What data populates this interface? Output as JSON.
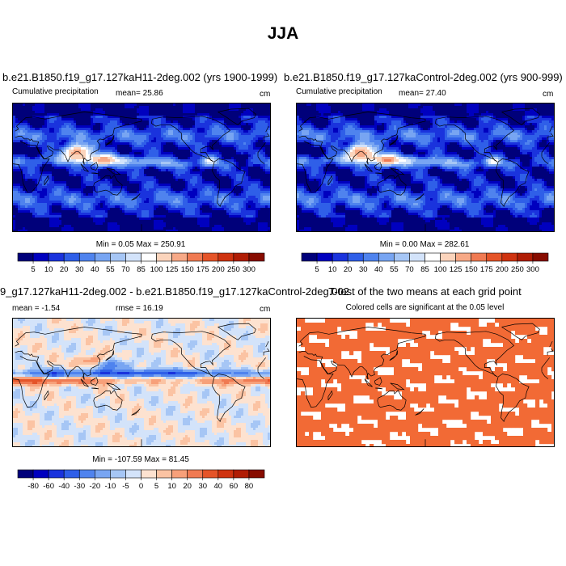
{
  "figure_title": "JJA",
  "panels": [
    {
      "title": "b.e21.B1850.f19_g17.127kaH11-2deg.002 (yrs 1900-1999)",
      "left_label": "Cumulative precipitation",
      "center_label": "mean=  25.86",
      "units": "cm",
      "minmax": "Min =   0.05 Max = 250.91"
    },
    {
      "title": "b.e21.B1850.f19_g17.127kaControl-2deg.002 (yrs 900-999)",
      "left_label": "Cumulative precipitation",
      "center_label": "mean=  27.40",
      "units": "cm",
      "minmax": "Min =   0.00 Max = 282.61"
    },
    {
      "title": "9_g17.127kaH11-2deg.002 - b.e21.B1850.f19_g17.127kaControl-2deg.002",
      "left_label": "mean =  -1.54",
      "center_label": "rmse =  16.19",
      "units": "cm",
      "minmax": "Min = -107.59 Max =  81.45"
    },
    {
      "title": "T-test of the two means at each grid point",
      "subtitle": "Colored cells are significant at the 0.05 level"
    }
  ],
  "colorbar_precip": {
    "labels": [
      "5",
      "10",
      "20",
      "30",
      "40",
      "55",
      "70",
      "85",
      "100",
      "125",
      "150",
      "175",
      "200",
      "250",
      "300"
    ],
    "colors": [
      "#00007a",
      "#0000bf",
      "#1a33dd",
      "#2f5fe8",
      "#4f83ee",
      "#78a5f2",
      "#a6c6f5",
      "#d3e3fa",
      "#ffffff",
      "#fbd4bc",
      "#f7a987",
      "#f07a52",
      "#e55428",
      "#cf3310",
      "#b01d05",
      "#870c00"
    ]
  },
  "colorbar_diff": {
    "labels": [
      "-80",
      "-60",
      "-40",
      "-30",
      "-20",
      "-10",
      "-5",
      "0",
      "5",
      "10",
      "20",
      "30",
      "40",
      "60",
      "80"
    ],
    "colors": [
      "#00007a",
      "#0000bf",
      "#1a33dd",
      "#2f5fe8",
      "#4f83ee",
      "#78a5f2",
      "#a6c6f5",
      "#d3e3fa",
      "#fde2d0",
      "#fbc3a3",
      "#f7a07a",
      "#f07a52",
      "#e55428",
      "#cf3310",
      "#b01d05",
      "#870c00"
    ]
  },
  "ttest_color": "#f26a35"
}
